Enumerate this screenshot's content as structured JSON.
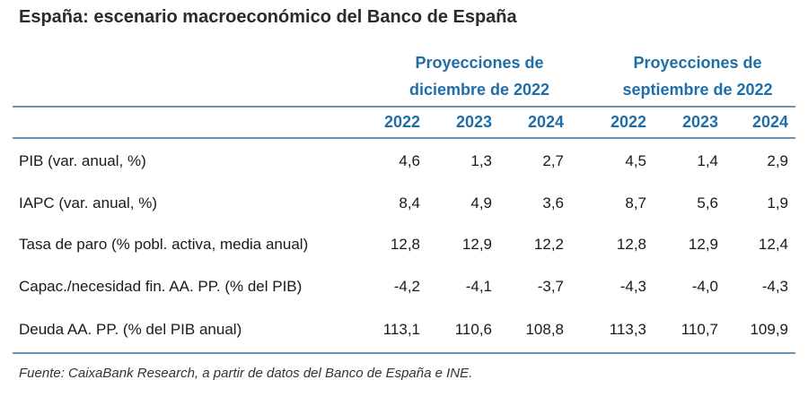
{
  "title": "España: escenario macroeconómico del Banco de España",
  "groups": [
    {
      "line1": "Proyecciones de",
      "line2": "diciembre de 2022"
    },
    {
      "line1": "Proyecciones de",
      "line2": "septiembre de 2022"
    }
  ],
  "years": [
    "2022",
    "2023",
    "2024",
    "2022",
    "2023",
    "2024"
  ],
  "rows": [
    {
      "label": "PIB (var. anual, %)",
      "values": [
        "4,6",
        "1,3",
        "2,7",
        "4,5",
        "1,4",
        "2,9"
      ]
    },
    {
      "label": "IAPC (var. anual, %)",
      "values": [
        "8,4",
        "4,9",
        "3,6",
        "8,7",
        "5,6",
        "1,9"
      ]
    },
    {
      "label": "Tasa de paro (% pobl. activa, media anual)",
      "values": [
        "12,8",
        "12,9",
        "12,2",
        "12,8",
        "12,9",
        "12,4"
      ]
    },
    {
      "label": "Capac./necesidad fin. AA. PP. (% del PIB)",
      "values": [
        "-4,2",
        "-4,1",
        "-3,7",
        "-4,3",
        "-4,0",
        "-4,3"
      ]
    },
    {
      "label": "Deuda AA. PP. (% del PIB anual)",
      "values": [
        "113,1",
        "110,6",
        "108,8",
        "113,3",
        "110,7",
        "109,9"
      ]
    }
  ],
  "footnote": "Fuente: CaixaBank Research, a partir de datos del Banco de España e INE.",
  "colors": {
    "header": "#1f6ea8",
    "rule": "#6a93b8"
  }
}
